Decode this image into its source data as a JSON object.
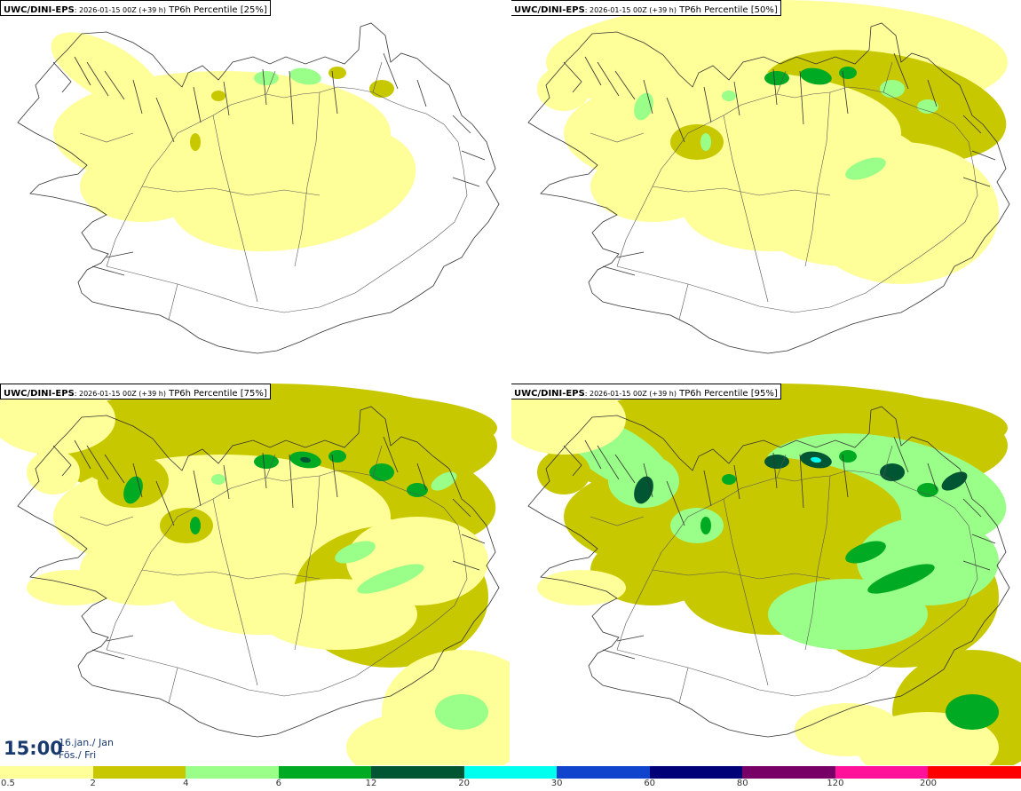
{
  "panels": [
    {
      "model": "UWC/DINI-EPS",
      "run": ": 2026-01-15 00Z (+39 h)",
      "param": " TP6h Percentile [25%]",
      "level": 1
    },
    {
      "model": "UWC/DINI-EPS",
      "run": ": 2026-01-15 00Z (+39 h)",
      "param": " TP6h Percentile [50%]",
      "level": 2
    },
    {
      "model": "UWC/DINI-EPS",
      "run": ": 2026-01-15 00Z (+39 h)",
      "param": " TP6h Percentile [75%]",
      "level": 3
    },
    {
      "model": "UWC/DINI-EPS",
      "run": ": 2026-01-15 00Z (+39 h)",
      "param": " TP6h Percentile [95%]",
      "level": 4
    }
  ],
  "valid_time": {
    "hour": "15:00",
    "date_line1": "16.jan./ Jan",
    "date_line2": "Fös./ Fri"
  },
  "legend": {
    "colors": [
      "#ffff99",
      "#c8c800",
      "#99ff88",
      "#00aa22",
      "#005533",
      "#00ffee",
      "#1144cc",
      "#000077",
      "#770066",
      "#ff1199",
      "#ff0000"
    ],
    "ticks": [
      "0.5",
      "2",
      "4",
      "6",
      "12",
      "20",
      "30",
      "60",
      "80",
      "120",
      "200"
    ]
  }
}
